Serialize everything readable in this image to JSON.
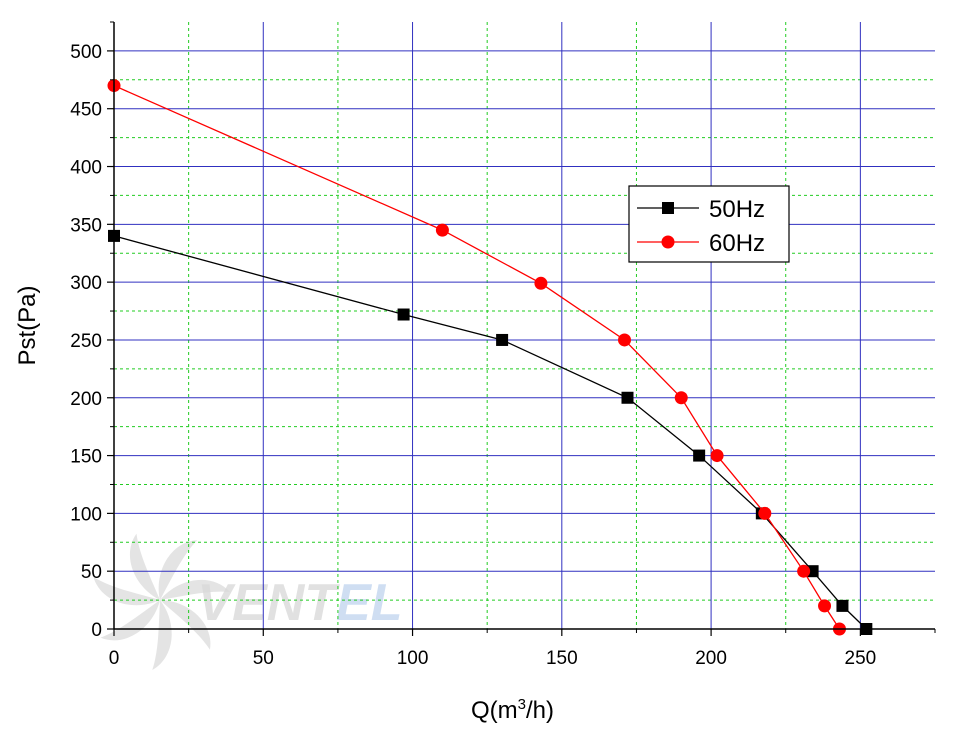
{
  "chart_data": {
    "type": "line",
    "title": "",
    "xlabel": "Q(m³/h)",
    "xlabel_parts": {
      "before": "Q(m",
      "sup": "3",
      "after": "/h)"
    },
    "ylabel": "Pst(Pa)",
    "xlim": [
      0,
      275
    ],
    "ylim": [
      0,
      525
    ],
    "xticks": [
      0,
      50,
      100,
      150,
      200,
      250
    ],
    "yticks": [
      0,
      50,
      100,
      150,
      200,
      250,
      300,
      350,
      400,
      450,
      500
    ],
    "major_grid": {
      "x": 50,
      "y": 50,
      "color": "#3030c0"
    },
    "minor_grid": {
      "x": 25,
      "y": 25,
      "color": "#22cc22"
    },
    "legend_position": "right-middle",
    "series": [
      {
        "name": "50Hz",
        "color": "#000000",
        "marker": "square",
        "x": [
          0,
          97,
          130,
          172,
          196,
          217,
          234,
          244,
          252
        ],
        "y": [
          340,
          272,
          250,
          200,
          150,
          100,
          50,
          20,
          0
        ]
      },
      {
        "name": "60Hz",
        "color": "#ff0000",
        "marker": "circle",
        "x": [
          0,
          110,
          143,
          171,
          190,
          202,
          218,
          231,
          238,
          243
        ],
        "y": [
          470,
          345,
          299,
          250,
          200,
          150,
          100,
          50,
          20,
          0
        ]
      }
    ]
  },
  "watermark": {
    "text": "VENTEL",
    "colors": {
      "vent": "#d8d8d8",
      "el": "#c0d4ee"
    }
  }
}
